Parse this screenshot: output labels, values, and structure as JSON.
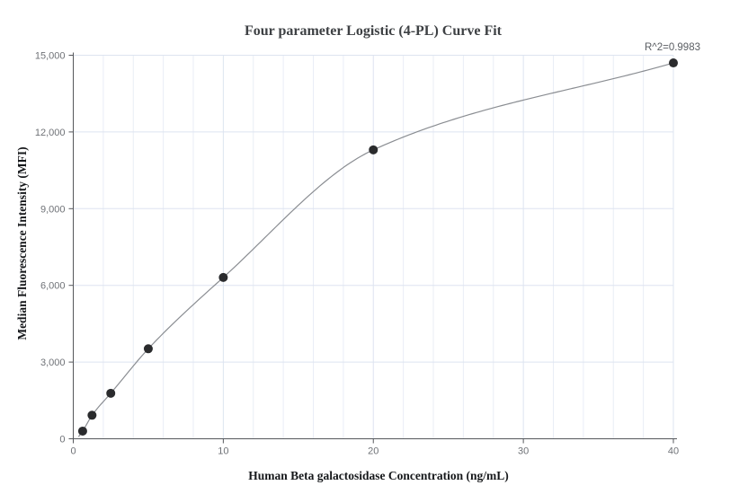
{
  "chart_data": {
    "type": "scatter",
    "title": "Four parameter Logistic (4-PL) Curve Fit",
    "xlabel": "Human Beta galactosidase Concentration (ng/mL)",
    "ylabel": "Median Fluorescence Intensity (MFI)",
    "annotation": "R^2=0.9983",
    "fit_model": "4-parameter logistic curve",
    "x": [
      0.625,
      1.25,
      2.5,
      5,
      10,
      20,
      40
    ],
    "y": [
      300,
      920,
      1780,
      3520,
      6310,
      11300,
      14700
    ],
    "xlim": [
      0,
      40
    ],
    "ylim": [
      0,
      15000
    ],
    "x_ticks": [
      0,
      10,
      20,
      30,
      40
    ],
    "x_tick_labels": [
      "0",
      "10",
      "20",
      "30",
      "40"
    ],
    "y_ticks": [
      0,
      3000,
      6000,
      9000,
      12000,
      15000
    ],
    "y_tick_labels": [
      "0",
      "3,000",
      "6,000",
      "9,000",
      "12,000",
      "15,000"
    ],
    "x_minor_grid_step": 2,
    "grid": true,
    "legend": null,
    "colors": {
      "point": "#2a2b2d",
      "curve": "#8a8d92",
      "grid_major": "#dde4f0",
      "grid_minor": "#e9edf6",
      "axis": "#55575b",
      "tick_label": "#6f7277",
      "title": "#3e4144",
      "axis_label": "#16181b",
      "annotation": "#5a5e63"
    }
  }
}
